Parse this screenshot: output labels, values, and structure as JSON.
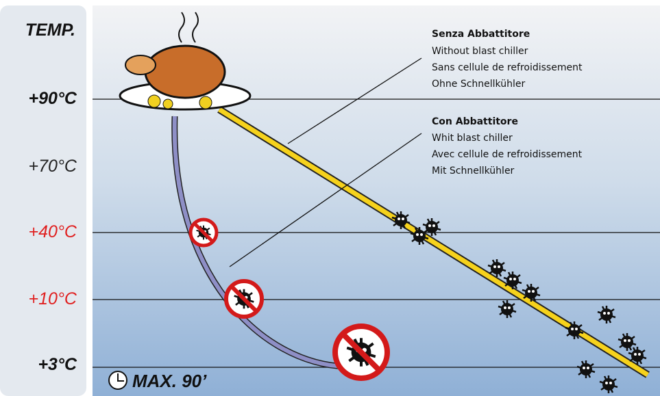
{
  "axis": {
    "title": "TEMP.",
    "levels": [
      "+90°C",
      "+70°C",
      "+40°C",
      "+10°C",
      "+3°C"
    ]
  },
  "without": {
    "title": "Senza Abbattitore",
    "lines": [
      "Without blast chiller",
      "Sans cellule de refroidissement",
      "Ohne Schnellkühler"
    ]
  },
  "with": {
    "title": "Con Abbattitore",
    "lines": [
      "Whit blast chiller",
      "Avec cellule de refroidissement",
      "Mit Schnellkühler"
    ]
  },
  "footer": "MAX. 90’"
}
